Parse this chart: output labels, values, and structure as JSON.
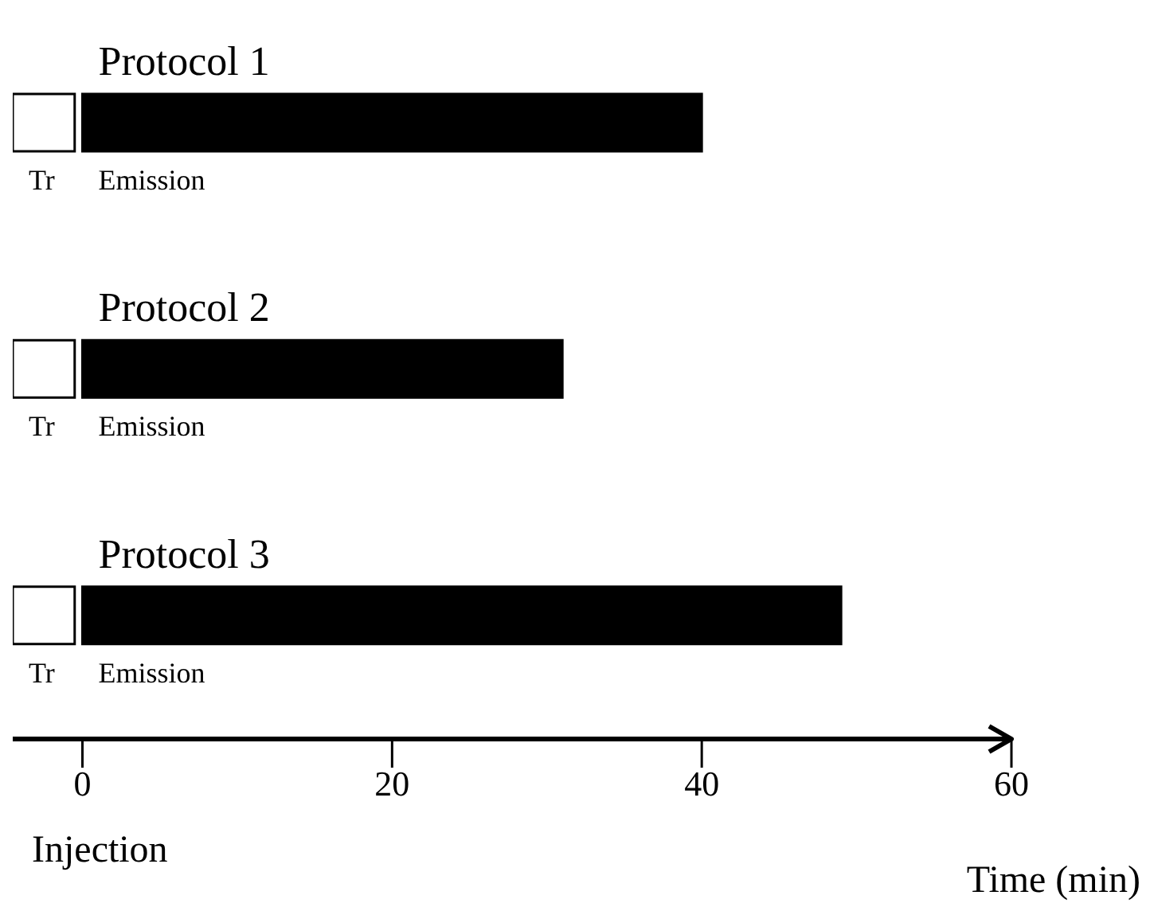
{
  "chart_data": {
    "type": "bar",
    "orientation": "horizontal",
    "xlabel": "Time (min)",
    "categories": [
      "Protocol 1",
      "Protocol 2",
      "Protocol 3"
    ],
    "series": [
      {
        "name": "Tr",
        "color": "#ffffff",
        "base": [
          -4.5,
          -4.5,
          -4.5
        ],
        "values": [
          4,
          4,
          4
        ]
      },
      {
        "name": "Emission",
        "color": "#000000",
        "base": [
          0,
          0,
          0
        ],
        "values": [
          40,
          31,
          49
        ]
      }
    ],
    "xlim": [
      -4.5,
      60
    ],
    "xticks": [
      0,
      20,
      40,
      60
    ],
    "annotations": [
      "Injection"
    ]
  }
}
